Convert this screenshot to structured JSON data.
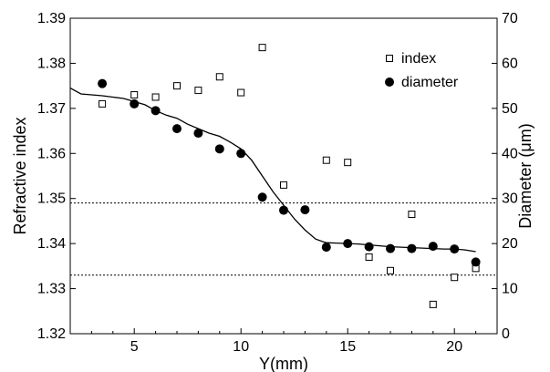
{
  "chart_data": {
    "type": "scatter",
    "title": "",
    "xlabel": "Y(mm)",
    "ylabel_left": "Refractive index",
    "ylabel_right": "Diameter (μm)",
    "xlim": [
      2,
      22
    ],
    "ylim_left": [
      1.32,
      1.39
    ],
    "ylim_right": [
      0,
      70
    ],
    "x_ticks": [
      5,
      10,
      15,
      20
    ],
    "y_ticks_left": [
      "1.32",
      "1.33",
      "1.34",
      "1.35",
      "1.36",
      "1.37",
      "1.38",
      "1.39"
    ],
    "y_ticks_right": [
      "0",
      "10",
      "20",
      "30",
      "40",
      "50",
      "60",
      "70"
    ],
    "legend_position": "top-right",
    "series": [
      {
        "name": "index",
        "axis": "left",
        "marker": "open-square",
        "x": [
          3.5,
          5,
          6,
          7,
          8,
          9,
          10,
          11,
          12,
          14,
          15,
          16,
          17,
          18,
          19,
          20,
          21
        ],
        "y": [
          1.371,
          1.373,
          1.3725,
          1.375,
          1.374,
          1.377,
          1.3735,
          1.3835,
          1.353,
          1.3585,
          1.358,
          1.337,
          1.334,
          1.3465,
          1.3265,
          1.3325,
          1.3345
        ]
      },
      {
        "name": "diameter",
        "axis": "right",
        "marker": "filled-circle",
        "x": [
          3.5,
          5,
          6,
          7,
          8,
          9,
          10,
          11,
          12,
          13,
          14,
          15,
          16,
          17,
          18,
          19,
          20,
          21
        ],
        "y": [
          55.5,
          51,
          49.5,
          45.5,
          44.5,
          41,
          40,
          30.3,
          27.4,
          27.5,
          19.2,
          20,
          19.3,
          18.9,
          18.9,
          19.4,
          18.8,
          15.9
        ]
      }
    ],
    "curve": {
      "axis": "right",
      "x": [
        2,
        2.5,
        3,
        3.5,
        4,
        4.5,
        5,
        5.5,
        6,
        6.5,
        7,
        7.5,
        8,
        8.5,
        9,
        9.5,
        10,
        10.5,
        11,
        11.5,
        12,
        12.5,
        13,
        13.5,
        13.8,
        14,
        14.5,
        15,
        15.5,
        16,
        16.5,
        17,
        17.5,
        18,
        18.5,
        19,
        19.5,
        20,
        20.5,
        21
      ],
      "y": [
        54.5,
        53.2,
        53,
        52.8,
        52.5,
        52.2,
        51.5,
        50.8,
        49.5,
        48.5,
        47.8,
        46.5,
        45.5,
        44.5,
        43.8,
        42.5,
        41,
        38.5,
        35,
        31.5,
        28.5,
        25.5,
        23,
        21,
        20.5,
        20.2,
        20.1,
        20,
        19.9,
        19.7,
        19.5,
        19.3,
        19.2,
        19.1,
        19,
        18.9,
        18.8,
        18.8,
        18.6,
        18.2
      ]
    },
    "reference_lines_left": [
      1.349,
      1.333
    ],
    "colors": {
      "axis": "#000000",
      "marker": "#000000",
      "reference": "#000000"
    }
  }
}
